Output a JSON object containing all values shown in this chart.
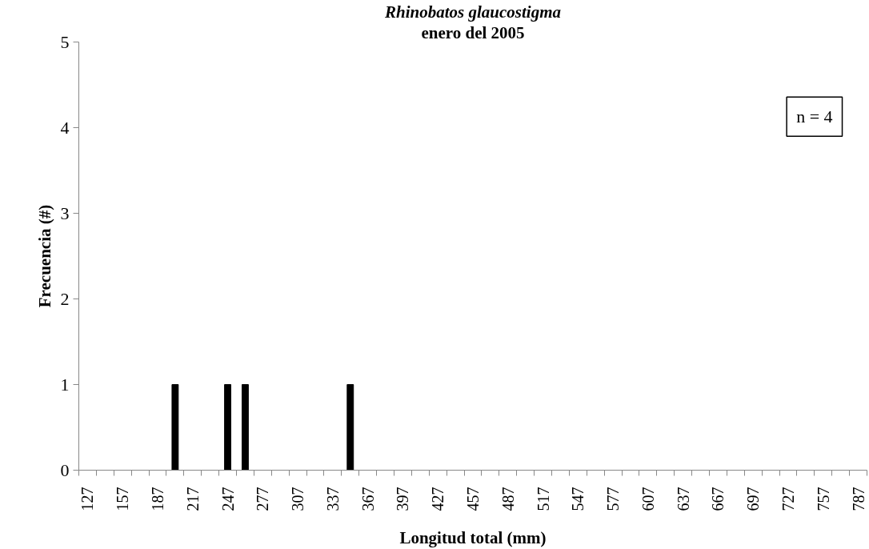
{
  "chart_data": {
    "type": "bar",
    "title": "Rhinobatos glaucostigma",
    "subtitle": "enero del 2005",
    "xlabel": "Longitud total (mm)",
    "ylabel": "Frecuencia (#)",
    "categories": [
      "127",
      null,
      "157",
      null,
      "187",
      null,
      "217",
      null,
      "247",
      null,
      "277",
      null,
      "307",
      null,
      "337",
      null,
      "367",
      null,
      "397",
      null,
      "427",
      null,
      "457",
      null,
      "487",
      null,
      "517",
      null,
      "547",
      null,
      "577",
      null,
      "607",
      null,
      "637",
      null,
      "667",
      null,
      "697",
      null,
      "727",
      null,
      "757",
      null,
      "787"
    ],
    "values": [
      0,
      0,
      0,
      0,
      0,
      1,
      0,
      0,
      1,
      1,
      0,
      0,
      0,
      0,
      0,
      1,
      0,
      0,
      0,
      0,
      0,
      0,
      0,
      0,
      0,
      0,
      0,
      0,
      0,
      0,
      0,
      0,
      0,
      0,
      0,
      0,
      0,
      0,
      0,
      0,
      0,
      0,
      0,
      0,
      0
    ],
    "color": "#000000",
    "ylim": [
      0,
      5
    ],
    "yticks": [
      0,
      1,
      2,
      3,
      4,
      5
    ],
    "grid": false,
    "annotations": [
      "n = 4"
    ]
  }
}
